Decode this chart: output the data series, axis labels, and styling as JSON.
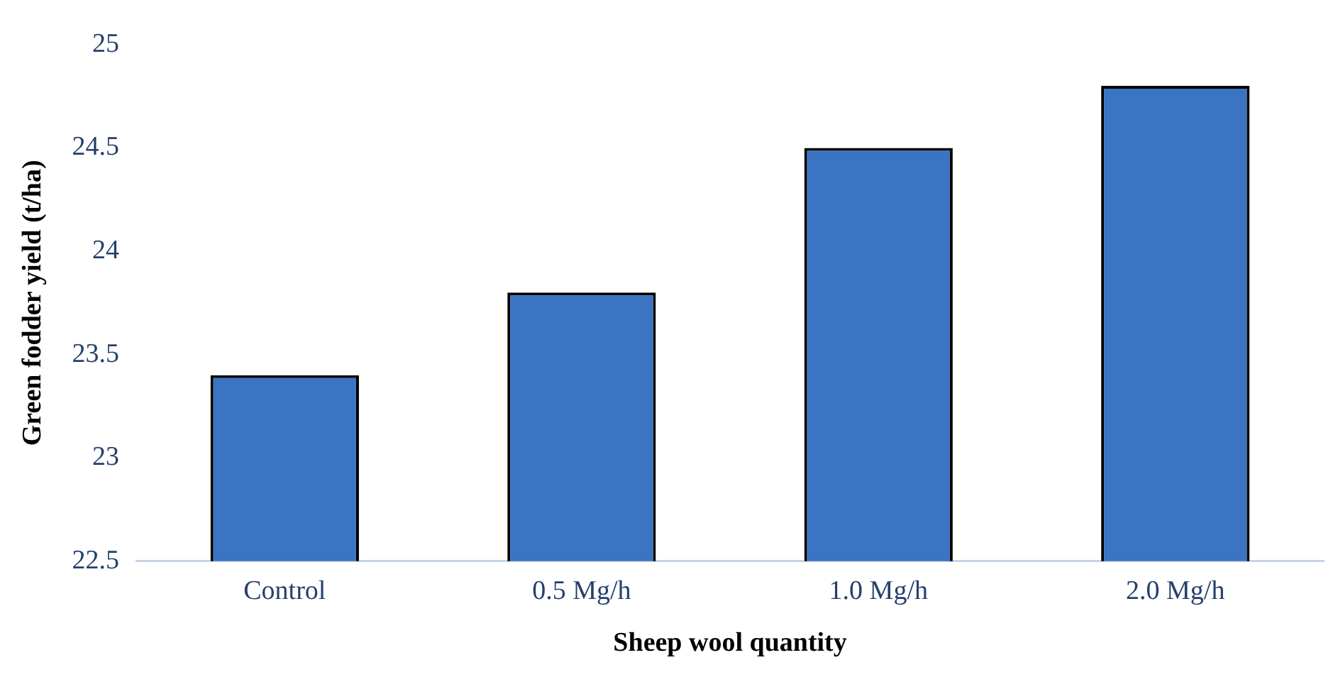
{
  "chart_data": {
    "type": "bar",
    "xlabel": "Sheep wool quantity",
    "ylabel": "Green fodder yield (t/ha)",
    "categories": [
      "Control",
      "0.5 Mg/h",
      "1.0 Mg/h",
      "2.0 Mg/h"
    ],
    "values": [
      23.4,
      23.8,
      24.5,
      24.8
    ],
    "color": "#3a74c2",
    "ylim": [
      22.5,
      25
    ],
    "yticks": [
      22.5,
      23,
      23.5,
      24,
      24.5,
      25
    ],
    "grid": false,
    "legend": false
  }
}
